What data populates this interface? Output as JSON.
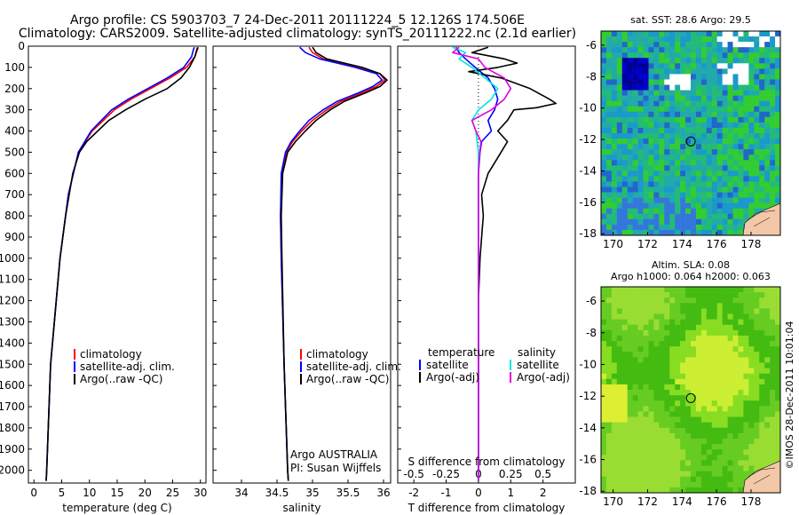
{
  "title": {
    "line1": "Argo profile: CS 5903703_7 24-Dec-2011 20111224_5 12.126S 174.506E",
    "line2": "Climatology: CARS2009. Satellite-adjusted climatology: synTS_20111222.nc (2.1d earlier)"
  },
  "colors": {
    "climatology": "#ff0000",
    "satellite": "#0000ff",
    "argo": "#000000",
    "sal_satellite": "#00e5e5",
    "sal_argo": "#e000e0"
  },
  "depth_ticks": [
    "0",
    "100",
    "200",
    "300",
    "400",
    "500",
    "600",
    "700",
    "800",
    "900",
    "1000",
    "1100",
    "1200",
    "1300",
    "1400",
    "1500",
    "1600",
    "1700",
    "1800",
    "1900",
    "2000"
  ],
  "legend": {
    "climatology": "climatology",
    "satellite": "satellite-adj. clim.",
    "argo": "Argo(..raw -QC)"
  },
  "diff_legend": {
    "temperature": "temperature",
    "salinity": "salinity",
    "satellite": "satellite",
    "argo": "Argo(-adj)"
  },
  "credit": {
    "line1": "Argo AUSTRALIA",
    "line2": "PI: Susan Wijffels"
  },
  "maps": {
    "sst_title": "sat. SST: 28.6 Argo: 29.5",
    "sla_title1": "Altim. SLA: 0.08",
    "sla_title2": "Argo h1000: 0.064 h2000: 0.063",
    "lat_ticks": [
      "-6",
      "-8",
      "-10",
      "-12",
      "-14",
      "-16",
      "-18"
    ],
    "lon_ticks": [
      "170",
      "172",
      "174",
      "176",
      "178"
    ],
    "lon_range": [
      169.3,
      179.7
    ],
    "lat_range": [
      -18.1,
      -5.1
    ],
    "float_lon": 174.506,
    "float_lat": -12.126
  },
  "side_note": "©IMOS 28-Dec-2011 10:01:04",
  "chart_data": [
    {
      "type": "line",
      "xlabel": "temperature (deg C)",
      "ylim": [
        0,
        2060
      ],
      "xlim": [
        -1,
        31
      ],
      "xticks": [
        "0",
        "5",
        "10",
        "15",
        "20",
        "25",
        "30"
      ],
      "series": [
        {
          "name": "climatology",
          "depth": [
            5,
            20,
            50,
            100,
            150,
            200,
            250,
            300,
            400,
            500,
            700,
            1000,
            1500,
            2000,
            2050
          ],
          "values": [
            29.6,
            29.4,
            29.0,
            27.5,
            24.5,
            21.0,
            17.5,
            14.5,
            10.5,
            8.0,
            6.2,
            4.7,
            3.0,
            2.3,
            2.2
          ]
        },
        {
          "name": "satellite-adj. clim.",
          "depth": [
            5,
            20,
            50,
            100,
            150,
            200,
            250,
            300,
            400,
            500,
            700,
            1000,
            1500,
            2000,
            2050
          ],
          "values": [
            28.9,
            28.7,
            28.4,
            27.0,
            24.0,
            20.5,
            17.0,
            14.0,
            10.3,
            8.0,
            6.2,
            4.7,
            3.0,
            2.3,
            2.2
          ]
        },
        {
          "name": "Argo(..raw -QC)",
          "depth": [
            5,
            20,
            50,
            100,
            150,
            200,
            250,
            300,
            350,
            400,
            450,
            500,
            600,
            800,
            1000,
            1500,
            2000,
            2050
          ],
          "values": [
            29.5,
            29.3,
            29.0,
            28.0,
            26.5,
            24.0,
            20.0,
            16.5,
            13.5,
            11.5,
            9.5,
            8.2,
            7.0,
            5.7,
            4.7,
            3.0,
            2.3,
            2.2
          ]
        }
      ]
    },
    {
      "type": "line",
      "xlabel": "salinity",
      "ylim": [
        0,
        2060
      ],
      "xlim": [
        33.6,
        36.1
      ],
      "xticks": [
        "34",
        "34.5",
        "35",
        "35.5",
        "36"
      ],
      "series": [
        {
          "name": "climatology",
          "depth": [
            5,
            30,
            60,
            100,
            130,
            160,
            190,
            220,
            260,
            300,
            350,
            400,
            450,
            500,
            600,
            800,
            1000,
            1500,
            2000,
            2050
          ],
          "values": [
            34.95,
            35.0,
            35.15,
            35.65,
            35.95,
            36.02,
            35.9,
            35.7,
            35.4,
            35.2,
            35.0,
            34.85,
            34.72,
            34.63,
            34.57,
            34.55,
            34.56,
            34.6,
            34.65,
            34.66
          ]
        },
        {
          "name": "satellite-adj. clim.",
          "depth": [
            5,
            30,
            60,
            100,
            130,
            160,
            190,
            220,
            260,
            300,
            350,
            400,
            450,
            500,
            600,
            800,
            1000,
            1500,
            2000,
            2050
          ],
          "values": [
            34.82,
            34.9,
            35.1,
            35.6,
            35.9,
            35.98,
            35.85,
            35.65,
            35.35,
            35.15,
            34.95,
            34.82,
            34.7,
            34.62,
            34.56,
            34.55,
            34.56,
            34.6,
            34.65,
            34.66
          ]
        },
        {
          "name": "Argo(..raw -QC)",
          "depth": [
            5,
            30,
            60,
            100,
            130,
            160,
            190,
            220,
            260,
            300,
            350,
            400,
            450,
            500,
            600,
            800,
            1000,
            1500,
            2000,
            2050
          ],
          "values": [
            35.0,
            35.05,
            35.2,
            35.7,
            35.95,
            36.05,
            35.95,
            35.75,
            35.45,
            35.25,
            35.05,
            34.9,
            34.76,
            34.65,
            34.58,
            34.56,
            34.57,
            34.6,
            34.65,
            34.66
          ]
        }
      ]
    },
    {
      "type": "line",
      "xlabel": "T difference from climatology",
      "x2label": "S difference from climatology",
      "ylim": [
        0,
        2060
      ],
      "xlim": [
        -2.5,
        3.0
      ],
      "xticks": [
        "-2",
        "-1",
        "0",
        "1",
        "2"
      ],
      "x2ticks": [
        "-0.5",
        "-0.25",
        "0",
        "0.25",
        "0.5"
      ],
      "series": [
        {
          "name": "temperature satellite",
          "depth": [
            5,
            30,
            60,
            100,
            150,
            200,
            250,
            300,
            350,
            400,
            450,
            500,
            600,
            700,
            800,
            1000,
            1500,
            2000,
            2050
          ],
          "values": [
            -0.7,
            -0.6,
            -0.4,
            -0.1,
            0.3,
            0.5,
            0.6,
            0.5,
            0.3,
            0.4,
            0.1,
            0.05,
            0.0,
            0.0,
            0.0,
            0.0,
            0.0,
            0.0,
            0.0
          ]
        },
        {
          "name": "temperature Argo(-adj)",
          "depth": [
            5,
            30,
            60,
            80,
            100,
            120,
            150,
            200,
            250,
            270,
            290,
            300,
            350,
            400,
            450,
            500,
            550,
            600,
            700,
            800,
            900,
            1000,
            1200,
            1500,
            2000,
            2050
          ],
          "values": [
            0.3,
            -0.2,
            0.8,
            1.2,
            0.6,
            -0.3,
            0.7,
            1.6,
            2.2,
            2.4,
            1.8,
            1.1,
            0.9,
            0.6,
            0.9,
            0.7,
            0.5,
            0.3,
            0.1,
            0.15,
            0.1,
            0.05,
            0.0,
            0.0,
            0.0,
            0.0
          ]
        },
        {
          "name": "salinity satellite",
          "depth": [
            5,
            30,
            60,
            100,
            150,
            200,
            250,
            300,
            350,
            400,
            500,
            600,
            800,
            1000,
            1500,
            2000,
            2050
          ],
          "values": [
            -0.2,
            -0.1,
            -0.15,
            -0.05,
            0.05,
            0.15,
            0.1,
            0.0,
            -0.05,
            -0.02,
            0.0,
            0.0,
            0.0,
            0.0,
            0.0,
            0.0,
            0.0
          ]
        },
        {
          "name": "salinity Argo(-adj)",
          "depth": [
            5,
            30,
            60,
            100,
            150,
            200,
            250,
            300,
            350,
            400,
            450,
            500,
            600,
            800,
            1000,
            1500,
            2000,
            2050
          ],
          "values": [
            -0.15,
            -0.2,
            0.0,
            0.05,
            0.2,
            0.25,
            0.2,
            0.1,
            -0.05,
            -0.02,
            0.02,
            0.01,
            0.0,
            0.0,
            0.0,
            0.0,
            0.0,
            0.0
          ]
        }
      ]
    }
  ]
}
